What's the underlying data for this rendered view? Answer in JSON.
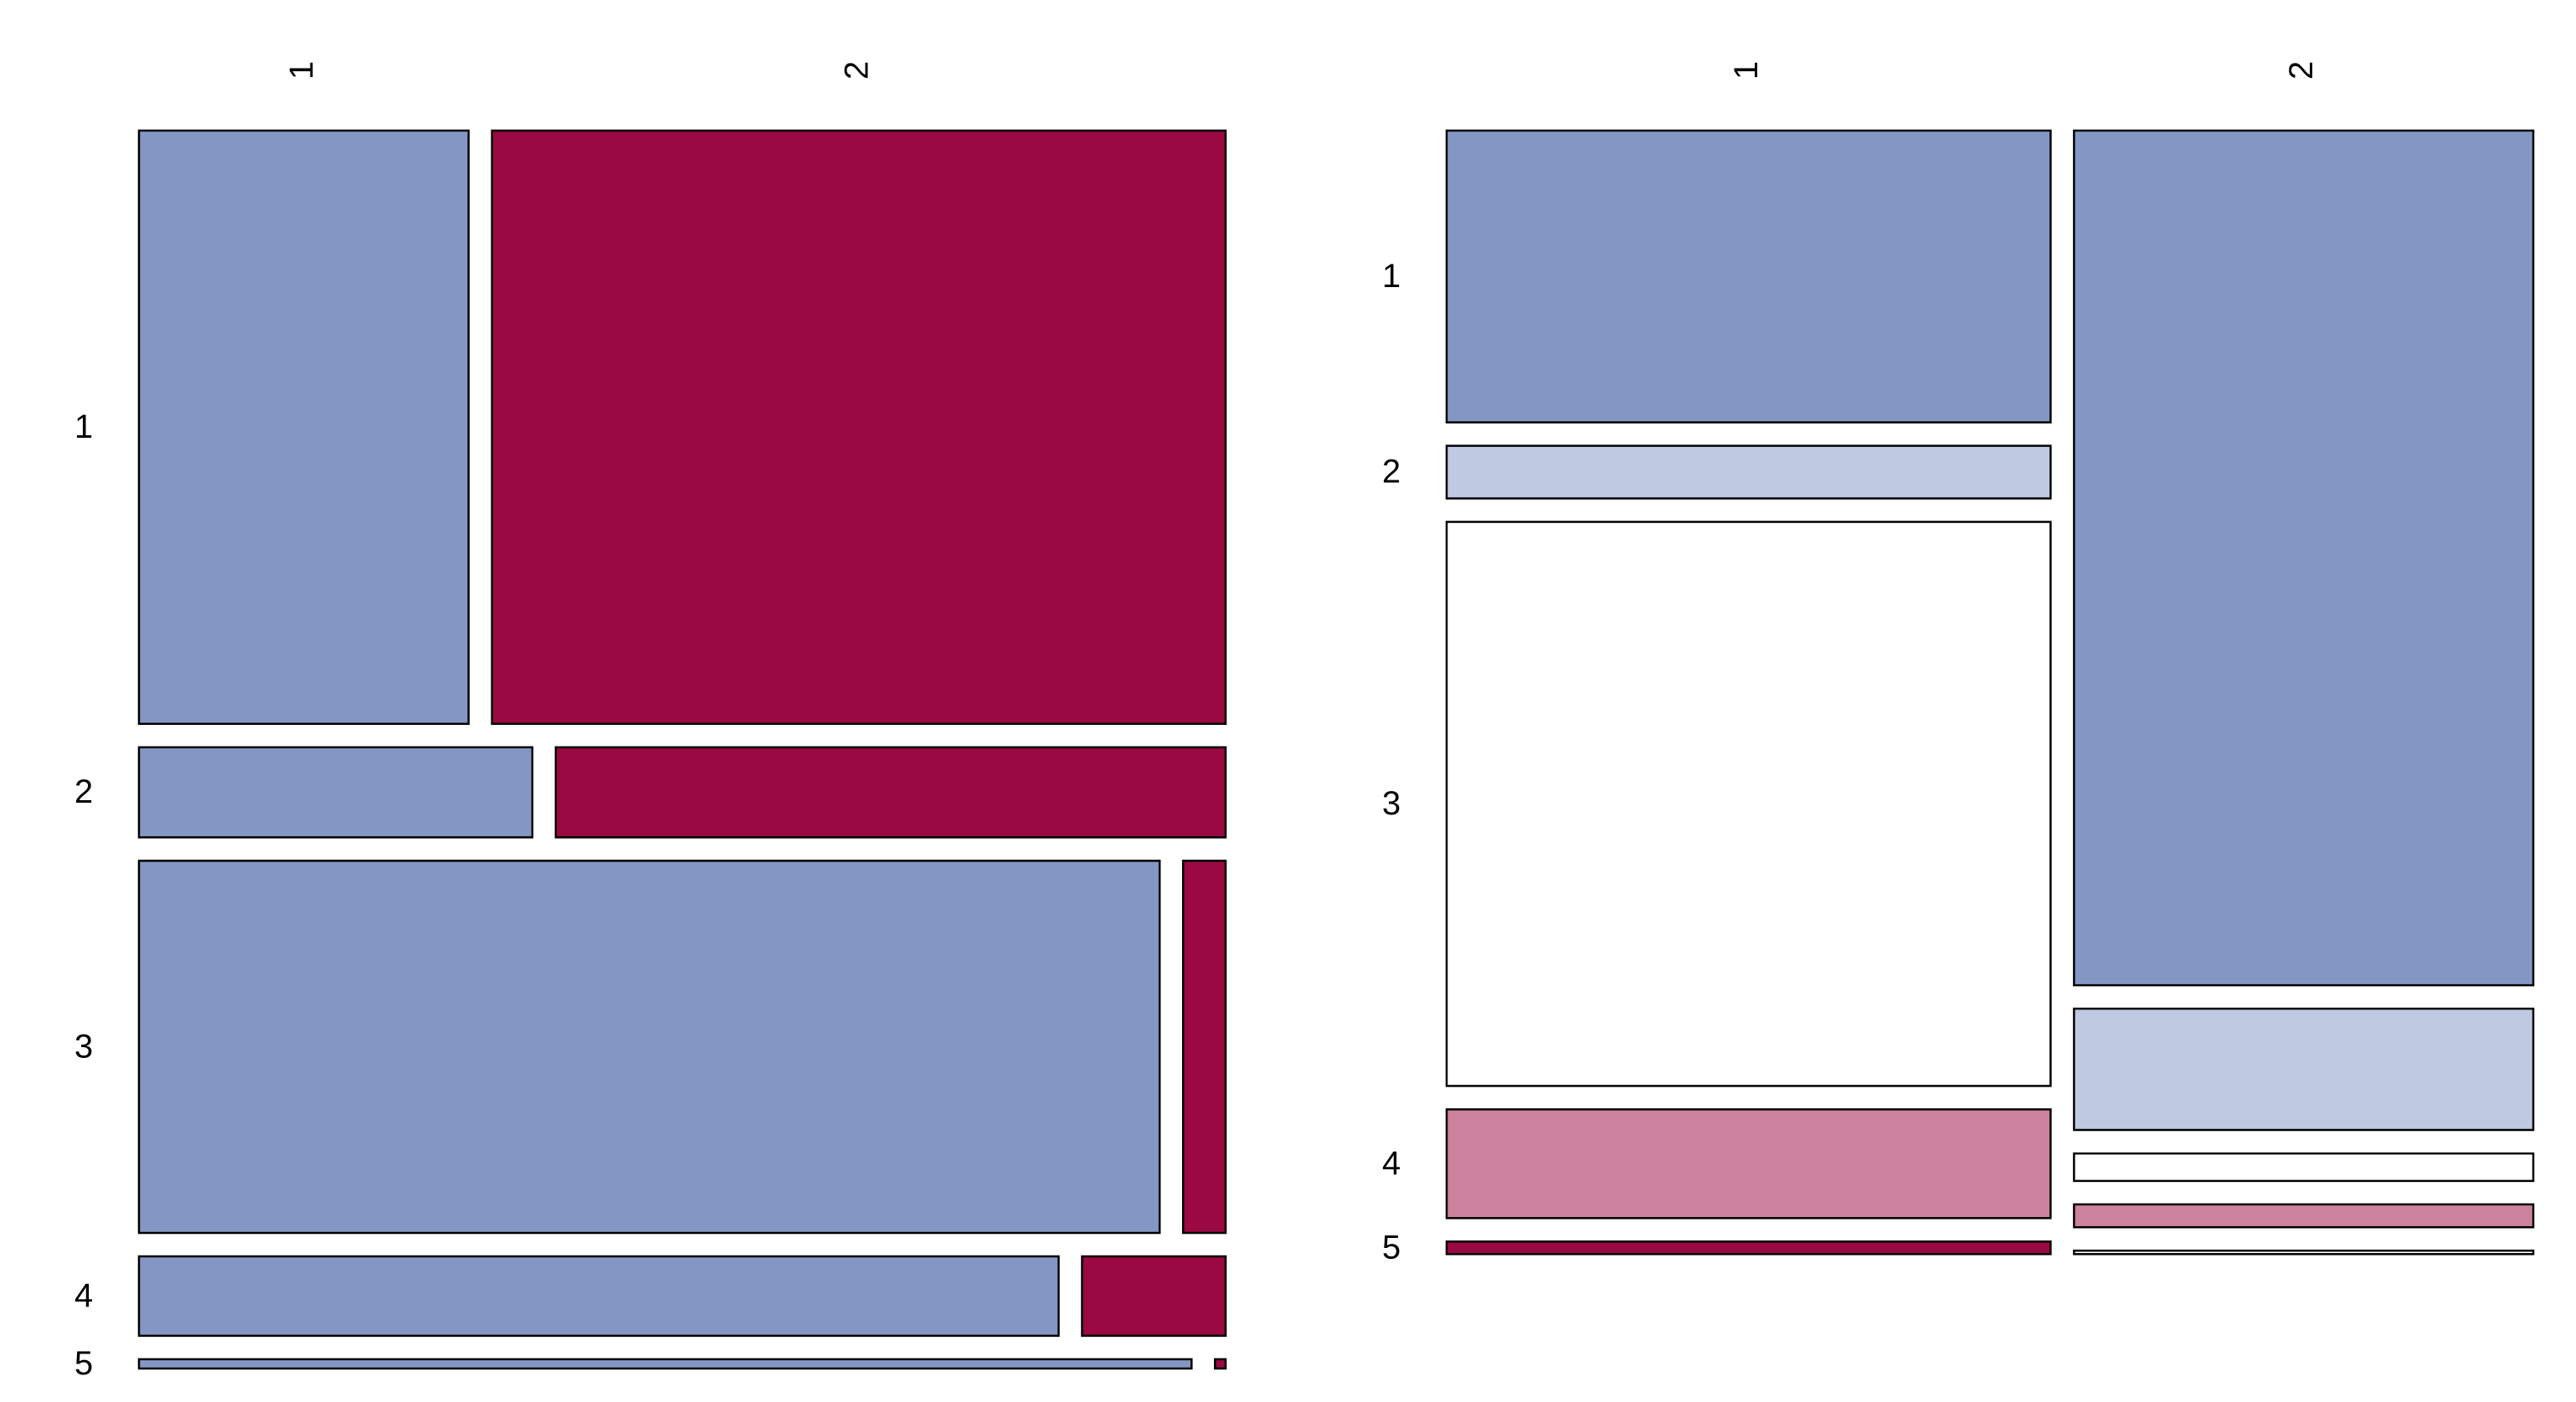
{
  "colors": {
    "strong_blue": "#8497C4",
    "light_blue": "#BFC9E2",
    "neutral": "#FFFFFF",
    "light_red": "#CC819D",
    "strong_red": "#9A0941",
    "border": "#000000"
  },
  "chart_data": [
    {
      "type": "mosaic",
      "title": "",
      "xlabel": "",
      "ylabel": "",
      "row_labels": [
        "1",
        "2",
        "3",
        "4",
        "5"
      ],
      "column_labels": [
        "1",
        "2"
      ],
      "row_fractions": [
        0.448,
        0.068,
        0.281,
        0.06,
        0.007
      ],
      "rows": [
        {
          "label": "1",
          "column_shares": [
            0.31,
            0.69
          ],
          "fills": [
            "strong_blue",
            "strong_red"
          ]
        },
        {
          "label": "2",
          "column_shares": [
            0.37,
            0.63
          ],
          "fills": [
            "strong_blue",
            "strong_red"
          ]
        },
        {
          "label": "3",
          "column_shares": [
            0.96,
            0.04
          ],
          "fills": [
            "strong_blue",
            "strong_red"
          ]
        },
        {
          "label": "4",
          "column_shares": [
            0.865,
            0.135
          ],
          "fills": [
            "strong_blue",
            "strong_red"
          ]
        },
        {
          "label": "5",
          "column_shares": [
            0.99,
            0.01
          ],
          "fills": [
            "strong_blue",
            "strong_red"
          ]
        }
      ]
    },
    {
      "type": "mosaic",
      "title": "",
      "xlabel": "",
      "ylabel": "",
      "row_labels": [
        "1",
        "2",
        "3",
        "4",
        "5"
      ],
      "column_labels": [
        "1",
        "2"
      ],
      "column_fractions": [
        0.568,
        0.432
      ],
      "columns": [
        {
          "label": "1",
          "row_shares": [
            0.255,
            0.046,
            0.493,
            0.095,
            0.011
          ],
          "fills": [
            "strong_blue",
            "light_blue",
            "neutral",
            "light_red",
            "strong_red"
          ]
        },
        {
          "label": "2",
          "row_shares": [
            0.747,
            0.106,
            0.024,
            0.02,
            0.003
          ],
          "fills": [
            "strong_blue",
            "light_blue",
            "neutral",
            "light_red",
            "neutral"
          ]
        }
      ]
    }
  ]
}
